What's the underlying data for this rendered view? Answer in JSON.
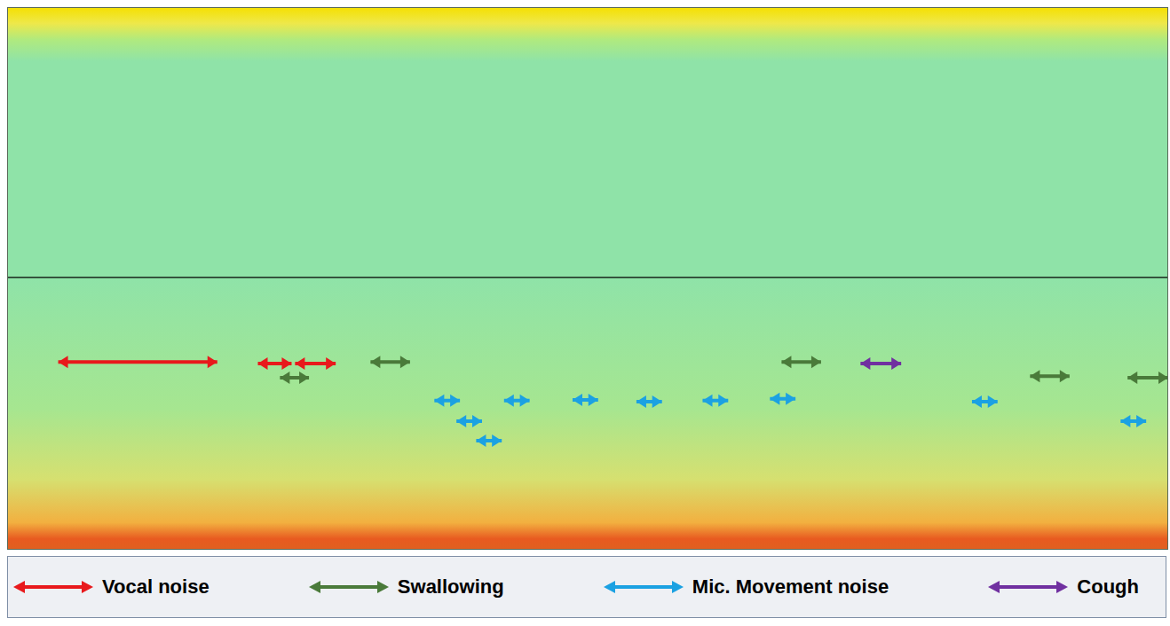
{
  "chart_data": {
    "type": "line",
    "xlim": [
      0,
      100
    ],
    "ylim": [
      0,
      100
    ],
    "grid": false,
    "tick_labels": false,
    "legend": "bottom",
    "series": [
      {
        "name": "Vocal noise",
        "color": "#e8191c",
        "x": [
          4.4,
          18.1,
          null,
          21.6,
          24.5,
          null,
          24.8,
          28.3
        ],
        "values": [
          34.6,
          34.6,
          null,
          34.3,
          34.3,
          null,
          34.3,
          34.3
        ]
      },
      {
        "name": "Swallowing",
        "color": "#4a7a3a",
        "x": [
          31.3,
          34.7,
          null,
          23.5,
          26.0,
          null,
          66.7,
          70.1,
          null,
          88.1,
          91.5,
          null,
          96.5,
          100
        ],
        "values": [
          34.6,
          34.6,
          null,
          31.7,
          31.7,
          null,
          34.6,
          34.6,
          null,
          32.0,
          32.0,
          null,
          31.7,
          31.7
        ]
      },
      {
        "name": "Mic. Movement noise",
        "color": "#1ba1e2",
        "x": [
          36.8,
          39.0,
          null,
          38.7,
          40.9,
          null,
          40.4,
          42.6,
          null,
          42.8,
          45.0,
          null,
          48.7,
          50.9,
          null,
          54.2,
          56.4,
          null,
          59.9,
          62.1,
          null,
          65.7,
          67.9,
          null,
          83.1,
          85.3,
          null,
          95.9,
          98.1
        ],
        "values": [
          27.5,
          27.5,
          null,
          23.7,
          23.7,
          null,
          20.1,
          20.1,
          null,
          27.5,
          27.5,
          null,
          27.6,
          27.6,
          null,
          27.3,
          27.3,
          null,
          27.5,
          27.5,
          null,
          27.8,
          27.8,
          null,
          27.3,
          27.3,
          null,
          23.7,
          23.7
        ]
      },
      {
        "name": "Cough",
        "color": "#7030a0",
        "x": [
          73.5,
          77.0
        ],
        "values": [
          34.3,
          34.3
        ]
      }
    ]
  }
}
